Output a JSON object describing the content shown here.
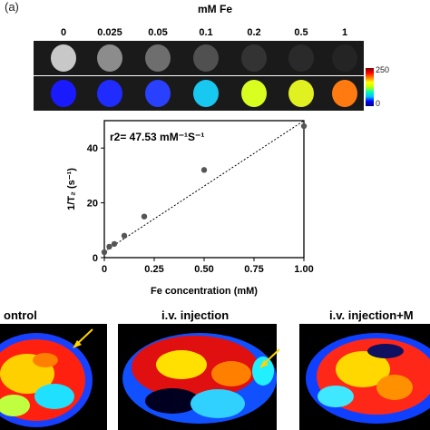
{
  "panel_label": "(a)",
  "concentration_title": "mM Fe",
  "concentrations": [
    "0",
    "0.025",
    "0.05",
    "0.1",
    "0.2",
    "0.5",
    "1"
  ],
  "gray_levels": [
    "#c8c8c8",
    "#8c8c8c",
    "#6e6e6e",
    "#505050",
    "#333333",
    "#2a2a2a",
    "#242424"
  ],
  "color_fills": [
    "#1a1aff",
    "#1f2bff",
    "#2a40ff",
    "#18c8f0",
    "#d8ff20",
    "#e0f020",
    "#ff7a10"
  ],
  "colorbar": {
    "max_label": "250",
    "min_label": "0"
  },
  "chart_data": {
    "type": "scatter",
    "annotation": "r2= 47.53 mM⁻¹S⁻¹",
    "xlabel": "Fe concentration (mM)",
    "ylabel": "1/T₂ (s⁻¹)",
    "xlim": [
      0,
      1.0
    ],
    "ylim": [
      0,
      50
    ],
    "x_ticks": [
      "0",
      "0.25",
      "0.50",
      "0.75",
      "1.00"
    ],
    "y_ticks": [
      "0",
      "20",
      "40"
    ],
    "points": [
      {
        "x": 0,
        "y": 2
      },
      {
        "x": 0.025,
        "y": 4
      },
      {
        "x": 0.05,
        "y": 5
      },
      {
        "x": 0.1,
        "y": 8
      },
      {
        "x": 0.2,
        "y": 15
      },
      {
        "x": 0.5,
        "y": 32
      },
      {
        "x": 1.0,
        "y": 48
      }
    ],
    "fit_line": {
      "x0": 0,
      "y0": 2.2,
      "x1": 1.0,
      "y1": 52
    },
    "grid": false
  },
  "mri_titles": [
    "ontrol",
    "i.v. injection",
    "i.v. injection+M"
  ]
}
